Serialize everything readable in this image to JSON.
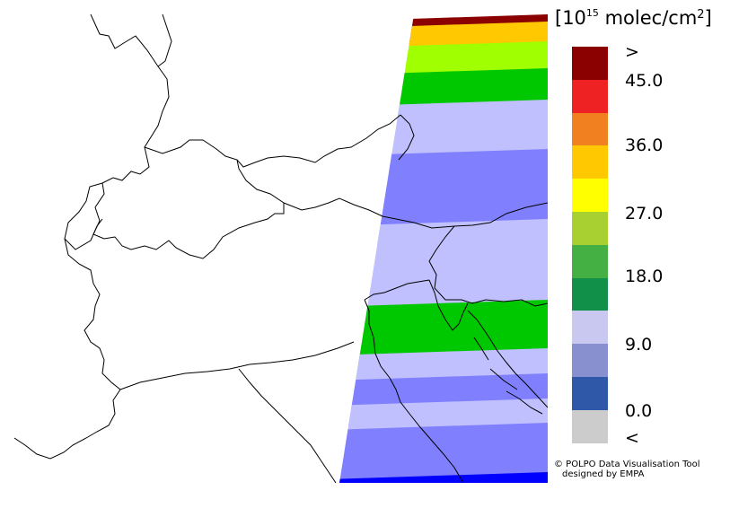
{
  "legend": {
    "title_prefix": "[10",
    "title_exp": "15",
    "title_mid": " molec/cm",
    "title_sq": "2",
    "title_suffix": "]",
    "colors": [
      "#8b0000",
      "#ee2222",
      "#f08020",
      "#ffc800",
      "#ffff00",
      "#a8d030",
      "#44b044",
      "#109048",
      "#c8c8f0",
      "#8890d0",
      "#3058a8",
      "#cccccc"
    ],
    "tick_labels": [
      ">",
      "45.0",
      "36.0",
      "27.0",
      "18.0",
      "9.0",
      "0.0",
      "<"
    ]
  },
  "credit": {
    "line1": "© POLPO Data Visualisation Tool",
    "line2": "designed by EMPA"
  },
  "map": {
    "region": "Alps / Northern Italy / Adriatic",
    "swath_values_top_to_bottom": [
      "> 45.0",
      "36.0-40.5",
      "27.0-31.5",
      "18.0-22.5",
      "9.0-13.5",
      "4.5-9.0",
      "9.0-13.5",
      "18.0-22.5",
      "9.0-13.5",
      "4.5-9.0",
      "9.0-13.5",
      "4.5-9.0",
      "0.0-4.5"
    ],
    "swath_colors_top_to_bottom": [
      "#8b0000",
      "#ffc800",
      "#a0ff00",
      "#00c800",
      "#c0c0ff",
      "#8080ff",
      "#c0c0ff",
      "#00c800",
      "#c0c0ff",
      "#8080ff",
      "#c0c0ff",
      "#8080ff",
      "#0000ff"
    ]
  }
}
